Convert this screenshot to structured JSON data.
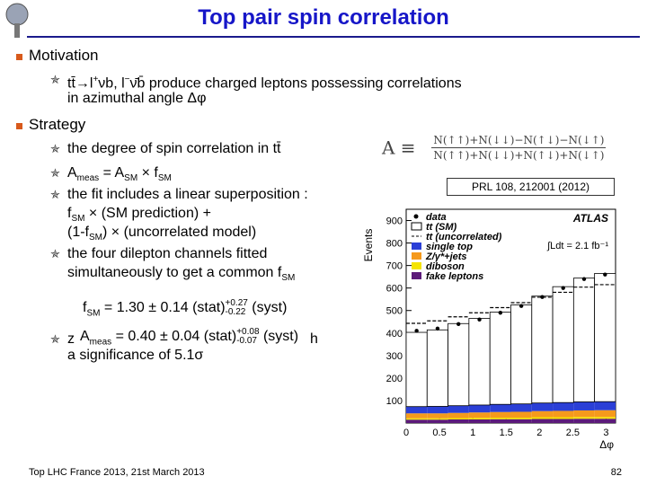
{
  "header": {
    "title": "Top pair spin correlation"
  },
  "motivation": {
    "heading": "Motivation",
    "items": [
      [
        [
          {
            "t": "tt̄→l"
          },
          {
            "sup": "+"
          },
          {
            "t": "νb, l"
          },
          {
            "sup": "−"
          },
          {
            "t": "ν̄b̄  produce charged leptons possessing correlations"
          }
        ],
        [
          {
            "t": "in azimuthal angle Δφ"
          }
        ]
      ]
    ]
  },
  "strategy": {
    "heading": "Strategy",
    "items": [
      [
        [
          {
            "t": "the degree of spin correlation in tt̄"
          }
        ]
      ],
      [
        [
          {
            "t": "A"
          },
          {
            "sub": "meas"
          },
          {
            "t": " = A"
          },
          {
            "sub": "SM"
          },
          {
            "t": " × f"
          },
          {
            "sub": "SM"
          }
        ]
      ],
      [
        [
          {
            "t": "the fit includes a linear superposition :"
          }
        ],
        [
          {
            "t": "f"
          },
          {
            "sub": "SM"
          },
          {
            "t": " × (SM prediction) +"
          }
        ],
        [
          {
            "t": "(1-f"
          },
          {
            "sub": "SM"
          },
          {
            "t": ") × (uncorrelated model)"
          }
        ]
      ],
      [
        [
          {
            "t": "the four dilepton channels fitted"
          }
        ],
        [
          {
            "t": "simultaneously to get a common f"
          },
          {
            "sub": "SM"
          }
        ]
      ]
    ]
  },
  "result_fsm": [
    {
      "t": "f"
    },
    {
      "sub": "SM"
    },
    {
      "t": " = 1.30 ± 0.14 (stat)"
    },
    {
      "sup": "+0.27",
      "sub": "-0.22"
    },
    {
      "t": " (syst)"
    }
  ],
  "hidden_bullet": {
    "start": "z",
    "end": "h",
    "line2": "a significance of 5.1σ"
  },
  "result_ameas": [
    {
      "t": "A"
    },
    {
      "sub": "meas"
    },
    {
      "t": " = 0.40 ± 0.04 (stat)"
    },
    {
      "sup": "+0.08",
      "sub": "-0.07"
    },
    {
      "t": " (syst)"
    }
  ],
  "formula": {
    "lhs": "A ≡",
    "numerator": "N(↑↑)+N(↓↓)−N(↑↓)−N(↓↑)",
    "denominator": "N(↑↑)+N(↓↓)+N(↑↓)+N(↓↑)"
  },
  "reference": "PRL 108, 212001 (2012)",
  "footer": {
    "left": "Top LHC France 2013, 21st March 2013",
    "page": "82"
  },
  "chart_data": {
    "type": "histogram",
    "ylabel": "Events",
    "xlabel": "Δφ",
    "experiment": "ATLAS",
    "lumi": "∫Ldt = 2.1 fb⁻¹",
    "bins": [
      0,
      0.314,
      0.628,
      0.942,
      1.257,
      1.571,
      1.885,
      2.199,
      2.513,
      2.827,
      3.142
    ],
    "xlim": [
      0,
      3.142
    ],
    "xticks": [
      0,
      0.5,
      1,
      1.5,
      2,
      2.5,
      3
    ],
    "ylim": [
      0,
      950
    ],
    "yticks": [
      100,
      200,
      300,
      400,
      500,
      600,
      700,
      800,
      900
    ],
    "data": {
      "name": "data",
      "color": "#000000",
      "values": [
        410,
        420,
        440,
        460,
        490,
        520,
        560,
        600,
        640,
        660
      ]
    },
    "series": [
      {
        "name": "fake leptons",
        "color": "#5c1a7a",
        "values": [
          15,
          15,
          16,
          16,
          17,
          17,
          18,
          18,
          19,
          19
        ]
      },
      {
        "name": "diboson",
        "color": "#f5e400",
        "values": [
          6,
          6,
          6,
          7,
          7,
          7,
          8,
          8,
          8,
          8
        ]
      },
      {
        "name": "Z/γ*+jets",
        "color": "#f59a1c",
        "values": [
          22,
          22,
          23,
          24,
          25,
          26,
          27,
          28,
          29,
          30
        ]
      },
      {
        "name": "single top",
        "color": "#2b3fd6",
        "values": [
          30,
          31,
          32,
          33,
          34,
          35,
          36,
          37,
          38,
          38
        ]
      },
      {
        "name": "tt (SM)",
        "color": "#ffffff",
        "values": [
          330,
          340,
          365,
          385,
          410,
          440,
          475,
          515,
          550,
          570
        ]
      }
    ],
    "alternative": {
      "name": "tt (uncorrelated)",
      "color": "#000000",
      "values": [
        370,
        380,
        395,
        410,
        430,
        450,
        470,
        490,
        510,
        520
      ]
    }
  }
}
